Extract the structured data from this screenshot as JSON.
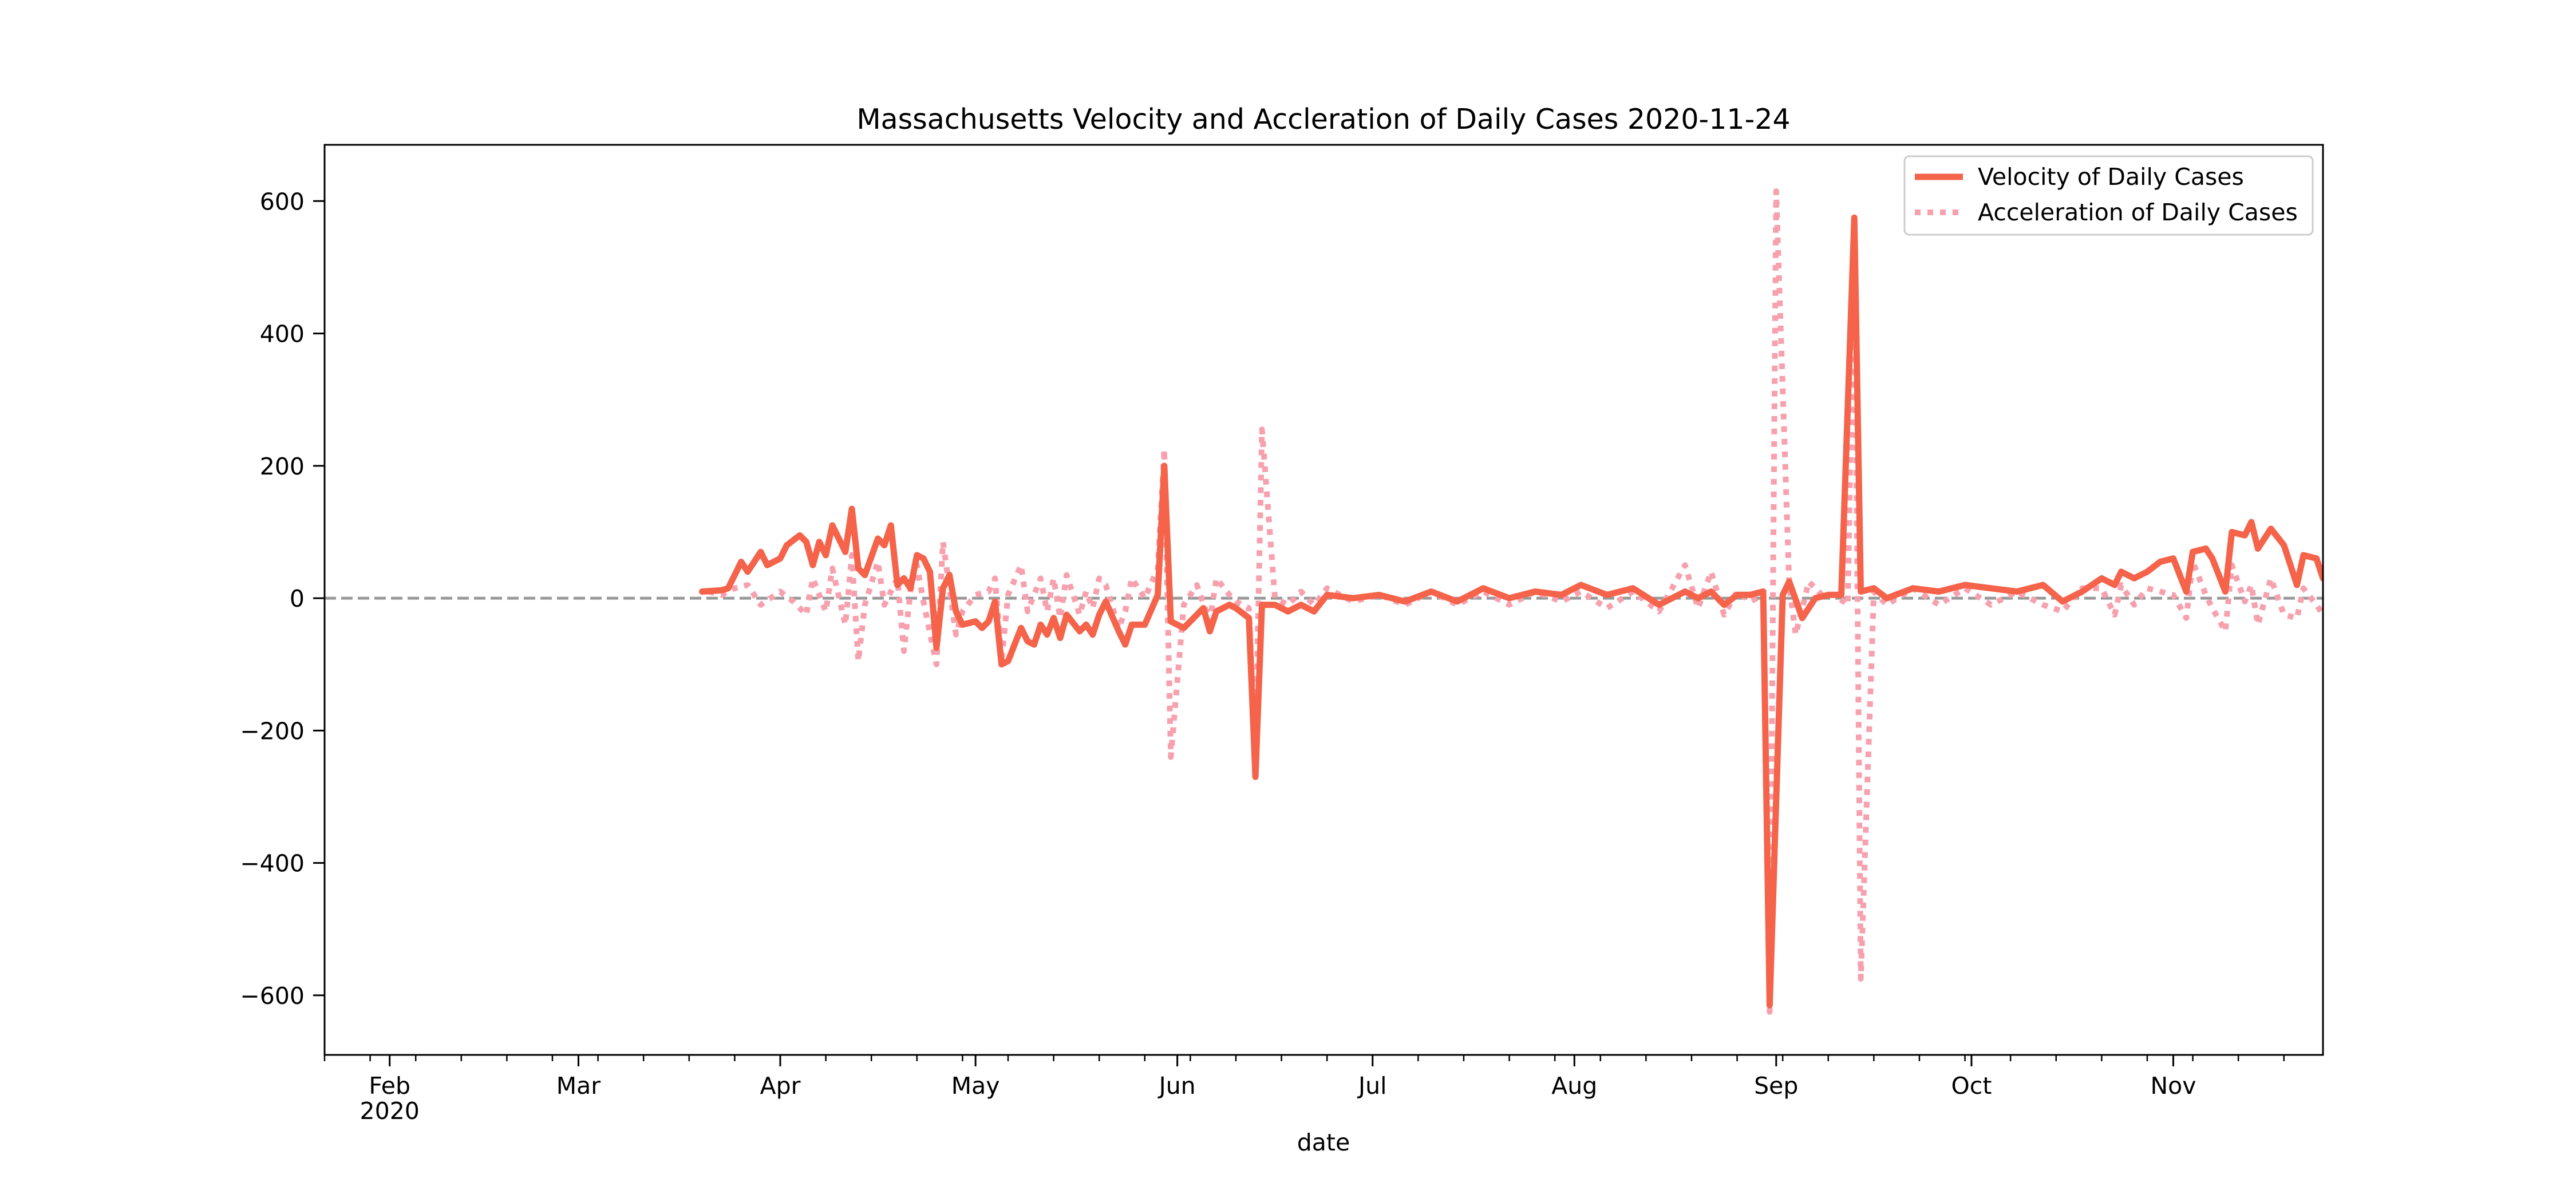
{
  "chart_data": {
    "type": "line",
    "title": "Massachusetts Velocity and Accleration of Daily Cases 2020-11-24",
    "xlabel": "date",
    "ylabel": "",
    "xlim": [
      "2020-01-22",
      "2020-11-24"
    ],
    "ylim": [
      -690,
      685
    ],
    "grid": false,
    "legend_position": "top-right",
    "reference_line": {
      "y": 0,
      "style": "dashed",
      "color": "#999999"
    },
    "x_ticks": [
      {
        "date": "2020-02-01",
        "label": "Feb",
        "sublabel": "2020"
      },
      {
        "date": "2020-03-01",
        "label": "Mar",
        "sublabel": ""
      },
      {
        "date": "2020-04-01",
        "label": "Apr",
        "sublabel": ""
      },
      {
        "date": "2020-05-01",
        "label": "May",
        "sublabel": ""
      },
      {
        "date": "2020-06-01",
        "label": "Jun",
        "sublabel": ""
      },
      {
        "date": "2020-07-01",
        "label": "Jul",
        "sublabel": ""
      },
      {
        "date": "2020-08-01",
        "label": "Aug",
        "sublabel": ""
      },
      {
        "date": "2020-09-01",
        "label": "Sep",
        "sublabel": ""
      },
      {
        "date": "2020-10-01",
        "label": "Oct",
        "sublabel": ""
      },
      {
        "date": "2020-11-01",
        "label": "Nov",
        "sublabel": ""
      }
    ],
    "y_ticks": [
      {
        "value": 600,
        "label": "600"
      },
      {
        "value": 400,
        "label": "400"
      },
      {
        "value": 200,
        "label": "200"
      },
      {
        "value": 0,
        "label": "0"
      },
      {
        "value": -200,
        "label": "−200"
      },
      {
        "value": -400,
        "label": "−400"
      },
      {
        "value": -600,
        "label": "−600"
      }
    ],
    "series": [
      {
        "name": "Velocity of Daily Cases",
        "color": "#f4634a",
        "style": "solid",
        "points": [
          [
            "2020-03-20",
            10
          ],
          [
            "2020-03-23",
            12
          ],
          [
            "2020-03-24",
            15
          ],
          [
            "2020-03-26",
            55
          ],
          [
            "2020-03-27",
            40
          ],
          [
            "2020-03-29",
            70
          ],
          [
            "2020-03-30",
            50
          ],
          [
            "2020-04-01",
            60
          ],
          [
            "2020-04-02",
            80
          ],
          [
            "2020-04-04",
            95
          ],
          [
            "2020-04-05",
            85
          ],
          [
            "2020-04-06",
            50
          ],
          [
            "2020-04-07",
            85
          ],
          [
            "2020-04-08",
            65
          ],
          [
            "2020-04-09",
            110
          ],
          [
            "2020-04-11",
            70
          ],
          [
            "2020-04-12",
            135
          ],
          [
            "2020-04-13",
            45
          ],
          [
            "2020-04-14",
            35
          ],
          [
            "2020-04-16",
            90
          ],
          [
            "2020-04-17",
            80
          ],
          [
            "2020-04-18",
            110
          ],
          [
            "2020-04-19",
            20
          ],
          [
            "2020-04-20",
            30
          ],
          [
            "2020-04-21",
            15
          ],
          [
            "2020-04-22",
            65
          ],
          [
            "2020-04-23",
            60
          ],
          [
            "2020-04-24",
            40
          ],
          [
            "2020-04-25",
            -75
          ],
          [
            "2020-04-26",
            15
          ],
          [
            "2020-04-27",
            35
          ],
          [
            "2020-04-28",
            -20
          ],
          [
            "2020-04-29",
            -40
          ],
          [
            "2020-05-01",
            -35
          ],
          [
            "2020-05-02",
            -45
          ],
          [
            "2020-05-03",
            -35
          ],
          [
            "2020-05-04",
            -5
          ],
          [
            "2020-05-05",
            -100
          ],
          [
            "2020-05-06",
            -95
          ],
          [
            "2020-05-08",
            -45
          ],
          [
            "2020-05-09",
            -65
          ],
          [
            "2020-05-10",
            -70
          ],
          [
            "2020-05-11",
            -40
          ],
          [
            "2020-05-12",
            -55
          ],
          [
            "2020-05-13",
            -30
          ],
          [
            "2020-05-14",
            -60
          ],
          [
            "2020-05-15",
            -25
          ],
          [
            "2020-05-17",
            -50
          ],
          [
            "2020-05-18",
            -40
          ],
          [
            "2020-05-19",
            -55
          ],
          [
            "2020-05-20",
            -25
          ],
          [
            "2020-05-21",
            -5
          ],
          [
            "2020-05-23",
            -50
          ],
          [
            "2020-05-24",
            -70
          ],
          [
            "2020-05-25",
            -40
          ],
          [
            "2020-05-27",
            -40
          ],
          [
            "2020-05-29",
            5
          ],
          [
            "2020-05-30",
            200
          ],
          [
            "2020-05-31",
            -35
          ],
          [
            "2020-06-02",
            -45
          ],
          [
            "2020-06-04",
            -25
          ],
          [
            "2020-06-05",
            -15
          ],
          [
            "2020-06-06",
            -50
          ],
          [
            "2020-06-07",
            -20
          ],
          [
            "2020-06-09",
            -10
          ],
          [
            "2020-06-10",
            -15
          ],
          [
            "2020-06-12",
            -30
          ],
          [
            "2020-06-13",
            -270
          ],
          [
            "2020-06-14",
            -10
          ],
          [
            "2020-06-16",
            -10
          ],
          [
            "2020-06-18",
            -20
          ],
          [
            "2020-06-20",
            -10
          ],
          [
            "2020-06-22",
            -20
          ],
          [
            "2020-06-24",
            5
          ],
          [
            "2020-06-28",
            0
          ],
          [
            "2020-07-02",
            5
          ],
          [
            "2020-07-06",
            -5
          ],
          [
            "2020-07-10",
            10
          ],
          [
            "2020-07-14",
            -5
          ],
          [
            "2020-07-18",
            15
          ],
          [
            "2020-07-22",
            0
          ],
          [
            "2020-07-26",
            10
          ],
          [
            "2020-07-30",
            5
          ],
          [
            "2020-08-02",
            20
          ],
          [
            "2020-08-06",
            5
          ],
          [
            "2020-08-10",
            15
          ],
          [
            "2020-08-14",
            -10
          ],
          [
            "2020-08-18",
            10
          ],
          [
            "2020-08-20",
            0
          ],
          [
            "2020-08-22",
            10
          ],
          [
            "2020-08-24",
            -10
          ],
          [
            "2020-08-26",
            5
          ],
          [
            "2020-08-28",
            5
          ],
          [
            "2020-08-30",
            10
          ],
          [
            "2020-08-31",
            -615
          ],
          [
            "2020-09-02",
            5
          ],
          [
            "2020-09-03",
            25
          ],
          [
            "2020-09-05",
            -30
          ],
          [
            "2020-09-07",
            0
          ],
          [
            "2020-09-09",
            5
          ],
          [
            "2020-09-11",
            5
          ],
          [
            "2020-09-13",
            575
          ],
          [
            "2020-09-14",
            10
          ],
          [
            "2020-09-16",
            15
          ],
          [
            "2020-09-18",
            0
          ],
          [
            "2020-09-22",
            15
          ],
          [
            "2020-09-26",
            10
          ],
          [
            "2020-09-30",
            20
          ],
          [
            "2020-10-04",
            15
          ],
          [
            "2020-10-08",
            10
          ],
          [
            "2020-10-12",
            20
          ],
          [
            "2020-10-15",
            -5
          ],
          [
            "2020-10-18",
            10
          ],
          [
            "2020-10-21",
            30
          ],
          [
            "2020-10-23",
            20
          ],
          [
            "2020-10-24",
            40
          ],
          [
            "2020-10-26",
            30
          ],
          [
            "2020-10-28",
            40
          ],
          [
            "2020-10-30",
            55
          ],
          [
            "2020-11-01",
            60
          ],
          [
            "2020-11-03",
            10
          ],
          [
            "2020-11-04",
            70
          ],
          [
            "2020-11-06",
            75
          ],
          [
            "2020-11-07",
            60
          ],
          [
            "2020-11-09",
            10
          ],
          [
            "2020-11-10",
            100
          ],
          [
            "2020-11-12",
            95
          ],
          [
            "2020-11-13",
            115
          ],
          [
            "2020-11-14",
            75
          ],
          [
            "2020-11-16",
            105
          ],
          [
            "2020-11-18",
            80
          ],
          [
            "2020-11-20",
            20
          ],
          [
            "2020-11-21",
            65
          ],
          [
            "2020-11-23",
            60
          ],
          [
            "2020-11-24",
            30
          ]
        ]
      },
      {
        "name": "Acceleration of Daily Cases",
        "color": "#f7a0ae",
        "style": "dotted",
        "points": [
          [
            "2020-03-21",
            10
          ],
          [
            "2020-03-23",
            5
          ],
          [
            "2020-03-25",
            15
          ],
          [
            "2020-03-27",
            20
          ],
          [
            "2020-03-29",
            -10
          ],
          [
            "2020-04-01",
            10
          ],
          [
            "2020-04-03",
            -5
          ],
          [
            "2020-04-05",
            -25
          ],
          [
            "2020-04-06",
            30
          ],
          [
            "2020-04-08",
            -20
          ],
          [
            "2020-04-09",
            45
          ],
          [
            "2020-04-11",
            -40
          ],
          [
            "2020-04-12",
            65
          ],
          [
            "2020-04-13",
            -95
          ],
          [
            "2020-04-14",
            -10
          ],
          [
            "2020-04-16",
            55
          ],
          [
            "2020-04-17",
            -10
          ],
          [
            "2020-04-19",
            30
          ],
          [
            "2020-04-20",
            -80
          ],
          [
            "2020-04-21",
            10
          ],
          [
            "2020-04-22",
            50
          ],
          [
            "2020-04-23",
            -5
          ],
          [
            "2020-04-25",
            -100
          ],
          [
            "2020-04-26",
            85
          ],
          [
            "2020-04-27",
            15
          ],
          [
            "2020-04-28",
            -55
          ],
          [
            "2020-04-29",
            -20
          ],
          [
            "2020-05-01",
            5
          ],
          [
            "2020-05-03",
            10
          ],
          [
            "2020-05-04",
            30
          ],
          [
            "2020-05-05",
            -95
          ],
          [
            "2020-05-06",
            5
          ],
          [
            "2020-05-08",
            50
          ],
          [
            "2020-05-09",
            -20
          ],
          [
            "2020-05-11",
            30
          ],
          [
            "2020-05-12",
            -20
          ],
          [
            "2020-05-13",
            30
          ],
          [
            "2020-05-14",
            -30
          ],
          [
            "2020-05-15",
            35
          ],
          [
            "2020-05-17",
            -25
          ],
          [
            "2020-05-18",
            10
          ],
          [
            "2020-05-19",
            -15
          ],
          [
            "2020-05-20",
            30
          ],
          [
            "2020-05-21",
            20
          ],
          [
            "2020-05-23",
            -45
          ],
          [
            "2020-05-24",
            -20
          ],
          [
            "2020-05-25",
            30
          ],
          [
            "2020-05-27",
            0
          ],
          [
            "2020-05-29",
            45
          ],
          [
            "2020-05-30",
            225
          ],
          [
            "2020-05-31",
            -240
          ],
          [
            "2020-06-02",
            -10
          ],
          [
            "2020-06-04",
            20
          ],
          [
            "2020-06-06",
            -35
          ],
          [
            "2020-06-07",
            30
          ],
          [
            "2020-06-09",
            5
          ],
          [
            "2020-06-10",
            -5
          ],
          [
            "2020-06-12",
            -15
          ],
          [
            "2020-06-13",
            -240
          ],
          [
            "2020-06-14",
            255
          ],
          [
            "2020-06-16",
            0
          ],
          [
            "2020-06-18",
            -10
          ],
          [
            "2020-06-20",
            10
          ],
          [
            "2020-06-22",
            -10
          ],
          [
            "2020-06-24",
            15
          ],
          [
            "2020-06-28",
            -5
          ],
          [
            "2020-07-02",
            5
          ],
          [
            "2020-07-06",
            -10
          ],
          [
            "2020-07-10",
            10
          ],
          [
            "2020-07-14",
            -10
          ],
          [
            "2020-07-18",
            10
          ],
          [
            "2020-07-22",
            -10
          ],
          [
            "2020-07-26",
            10
          ],
          [
            "2020-07-30",
            -5
          ],
          [
            "2020-08-02",
            10
          ],
          [
            "2020-08-06",
            -15
          ],
          [
            "2020-08-10",
            10
          ],
          [
            "2020-08-14",
            -20
          ],
          [
            "2020-08-18",
            50
          ],
          [
            "2020-08-20",
            -15
          ],
          [
            "2020-08-22",
            40
          ],
          [
            "2020-08-24",
            -25
          ],
          [
            "2020-08-26",
            10
          ],
          [
            "2020-08-28",
            -5
          ],
          [
            "2020-08-30",
            5
          ],
          [
            "2020-08-31",
            -625
          ],
          [
            "2020-09-01",
            615
          ],
          [
            "2020-09-03",
            20
          ],
          [
            "2020-09-04",
            -55
          ],
          [
            "2020-09-06",
            25
          ],
          [
            "2020-09-08",
            5
          ],
          [
            "2020-09-10",
            5
          ],
          [
            "2020-09-12",
            -10
          ],
          [
            "2020-09-13",
            570
          ],
          [
            "2020-09-14",
            -575
          ],
          [
            "2020-09-16",
            10
          ],
          [
            "2020-09-18",
            -10
          ],
          [
            "2020-09-22",
            15
          ],
          [
            "2020-09-26",
            -10
          ],
          [
            "2020-09-30",
            15
          ],
          [
            "2020-10-04",
            -10
          ],
          [
            "2020-10-08",
            10
          ],
          [
            "2020-10-12",
            -10
          ],
          [
            "2020-10-15",
            -20
          ],
          [
            "2020-10-18",
            15
          ],
          [
            "2020-10-21",
            15
          ],
          [
            "2020-10-23",
            -25
          ],
          [
            "2020-10-24",
            20
          ],
          [
            "2020-10-26",
            -10
          ],
          [
            "2020-10-28",
            15
          ],
          [
            "2020-10-30",
            10
          ],
          [
            "2020-11-01",
            5
          ],
          [
            "2020-11-03",
            -30
          ],
          [
            "2020-11-04",
            55
          ],
          [
            "2020-11-06",
            5
          ],
          [
            "2020-11-07",
            -15
          ],
          [
            "2020-11-09",
            -50
          ],
          [
            "2020-11-10",
            50
          ],
          [
            "2020-11-12",
            -5
          ],
          [
            "2020-11-13",
            20
          ],
          [
            "2020-11-14",
            -40
          ],
          [
            "2020-11-16",
            30
          ],
          [
            "2020-11-18",
            -25
          ],
          [
            "2020-11-20",
            -30
          ],
          [
            "2020-11-21",
            15
          ],
          [
            "2020-11-23",
            -10
          ],
          [
            "2020-11-24",
            -25
          ]
        ]
      }
    ]
  }
}
